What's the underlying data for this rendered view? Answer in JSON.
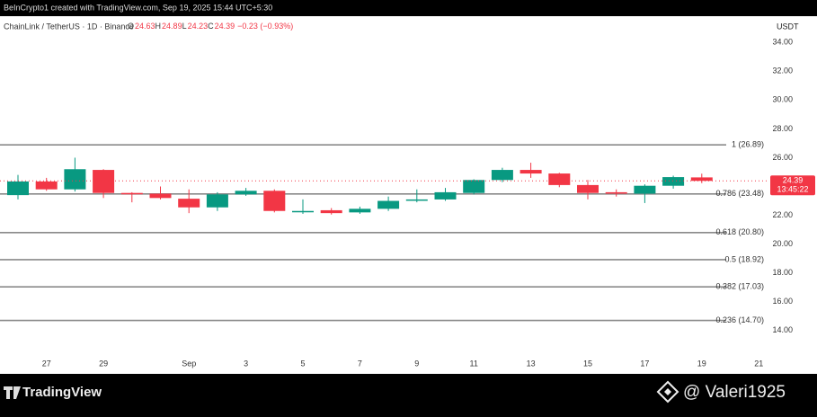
{
  "header": {
    "credit": "BeInCrypto1 created with TradingView.com, Sep 19, 2025 15:44 UTC+5:30",
    "symbol": "ChainLink / TetherUS · 1D · Binance",
    "ohlc": [
      {
        "key": "O",
        "text": "24.63"
      },
      {
        "key": "H",
        "text": "24.89"
      },
      {
        "key": "L",
        "text": "24.23"
      },
      {
        "key": "C",
        "text": "24.39"
      }
    ],
    "change": "−0.23 (−0.93%)"
  },
  "chart_data": {
    "type": "candlestick",
    "y_unit": "USDT",
    "categories": [
      null,
      "27",
      null,
      "29",
      null,
      null,
      "Sep",
      null,
      "3",
      null,
      "5",
      null,
      "7",
      null,
      "9",
      null,
      "11",
      null,
      "13",
      null,
      "15",
      null,
      "17",
      null,
      "19",
      null,
      "21"
    ],
    "open": [
      23.4,
      24.35,
      23.8,
      25.15,
      23.55,
      23.5,
      23.15,
      22.55,
      23.45,
      23.7,
      22.3,
      22.35,
      22.2,
      22.45,
      23.05,
      23.1,
      23.55,
      24.45,
      25.15,
      24.9,
      24.1,
      23.6,
      23.5,
      24.05,
      24.63,
      null,
      null
    ],
    "high": [
      24.8,
      24.6,
      26.0,
      25.2,
      23.6,
      24.0,
      23.8,
      23.6,
      23.9,
      23.8,
      23.1,
      22.5,
      22.6,
      23.3,
      23.8,
      23.9,
      24.5,
      25.3,
      25.65,
      24.95,
      24.45,
      23.8,
      24.15,
      24.75,
      24.89,
      null,
      null
    ],
    "low": [
      23.1,
      23.7,
      23.65,
      23.2,
      22.9,
      23.1,
      22.15,
      22.3,
      23.35,
      22.2,
      22.1,
      22.05,
      22.1,
      22.3,
      22.9,
      23.0,
      23.45,
      24.3,
      24.6,
      23.95,
      23.1,
      23.3,
      22.85,
      23.85,
      24.23,
      null,
      null
    ],
    "close": [
      24.35,
      23.8,
      25.2,
      23.55,
      23.5,
      23.2,
      22.55,
      23.45,
      23.7,
      22.3,
      22.3,
      22.15,
      22.45,
      23.0,
      23.1,
      23.6,
      24.45,
      25.15,
      24.9,
      24.1,
      23.55,
      23.5,
      24.05,
      24.65,
      24.39,
      null,
      null
    ],
    "up_color": "#089981",
    "down_color": "#f23645",
    "ylim": [
      12.3,
      35.7
    ],
    "yticks": [
      {
        "value": 14,
        "label": "14.00"
      },
      {
        "value": 16,
        "label": "16.00"
      },
      {
        "value": 18,
        "label": "18.00"
      },
      {
        "value": 20,
        "label": "20.00"
      },
      {
        "value": 22,
        "label": "22.00"
      },
      {
        "value": 24,
        "label": "24.00"
      },
      {
        "value": 26,
        "label": "26.00"
      },
      {
        "value": 28,
        "label": "28.00"
      },
      {
        "value": 30,
        "label": "30.00"
      },
      {
        "value": 32,
        "label": "32.00"
      },
      {
        "value": 34,
        "label": "34.00"
      }
    ],
    "fib_levels": [
      {
        "value": 26.89,
        "label": "1 (26.89)"
      },
      {
        "value": 23.48,
        "label": "0.786 (23.48)"
      },
      {
        "value": 20.8,
        "label": "0.618 (20.80)"
      },
      {
        "value": 18.92,
        "label": "0.5 (18.92)"
      },
      {
        "value": 17.03,
        "label": "0.382 (17.03)"
      },
      {
        "value": 14.7,
        "label": "0.236 (14.70)"
      }
    ],
    "fib_color": "#8a8a8a",
    "countdown": "13:45:22"
  },
  "footer": {
    "brand": "TradingView",
    "author": "@ Valeri1925"
  }
}
